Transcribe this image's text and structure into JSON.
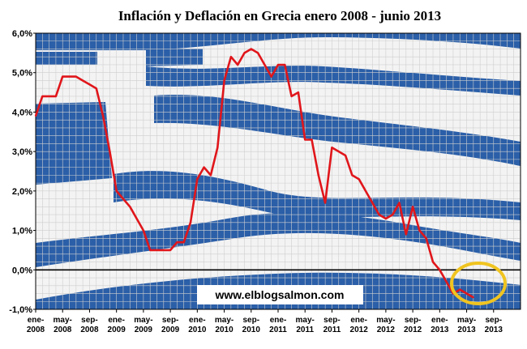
{
  "chart_data": {
    "type": "line",
    "title": "Inflación y Deflación en Grecia enero 2008 - junio 2013",
    "xlabel": "",
    "ylabel": "",
    "ylim": [
      -1.0,
      6.0
    ],
    "yticks": [
      "6,0%",
      "5,0%",
      "4,0%",
      "3,0%",
      "2,0%",
      "1,0%",
      "0,0%",
      "-1,0%"
    ],
    "xticks": [
      {
        "label": "ene-",
        "year": "2008"
      },
      {
        "label": "may-",
        "year": "2008"
      },
      {
        "label": "sep-",
        "year": "2008"
      },
      {
        "label": "ene-",
        "year": "2009"
      },
      {
        "label": "may-",
        "year": "2009"
      },
      {
        "label": "sep-",
        "year": "2009"
      },
      {
        "label": "ene-",
        "year": "2010"
      },
      {
        "label": "may-",
        "year": "2010"
      },
      {
        "label": "sep-",
        "year": "2010"
      },
      {
        "label": "ene-",
        "year": "2011"
      },
      {
        "label": "may-",
        "year": "2011"
      },
      {
        "label": "sep-",
        "year": "2011"
      },
      {
        "label": "ene-",
        "year": "2012"
      },
      {
        "label": "may-",
        "year": "2012"
      },
      {
        "label": "sep-",
        "year": "2012"
      },
      {
        "label": "ene-",
        "year": "2013"
      },
      {
        "label": "may-",
        "year": "2013"
      },
      {
        "label": "sep-",
        "year": "2013"
      }
    ],
    "grid": true,
    "legend": "none",
    "series": [
      {
        "color": "#e0161b",
        "values": [
          3.9,
          4.4,
          4.4,
          4.4,
          4.9,
          4.9,
          4.9,
          4.8,
          4.7,
          4.6,
          3.9,
          3.0,
          2.0,
          1.8,
          1.6,
          1.3,
          1.0,
          0.5,
          0.5,
          0.5,
          0.5,
          0.7,
          0.7,
          1.2,
          2.3,
          2.6,
          2.4,
          3.1,
          4.8,
          5.4,
          5.2,
          5.5,
          5.6,
          5.5,
          5.2,
          4.9,
          5.2,
          5.2,
          4.4,
          4.5,
          3.3,
          3.3,
          2.4,
          1.7,
          3.1,
          3.0,
          2.9,
          2.4,
          2.3,
          2.0,
          1.7,
          1.4,
          1.3,
          1.4,
          1.7,
          0.9,
          1.6,
          1.0,
          0.8,
          0.2,
          0.0,
          -0.3,
          -0.6,
          -0.5,
          -0.6,
          -0.7
        ]
      }
    ],
    "highlight_color": "#f0c420"
  },
  "watermark": "www.elblogsalmon.com",
  "colors": {
    "flag_blue": "#2b5fa8",
    "flag_white": "#f3f3f3",
    "gridline": "#cfcfcf"
  }
}
